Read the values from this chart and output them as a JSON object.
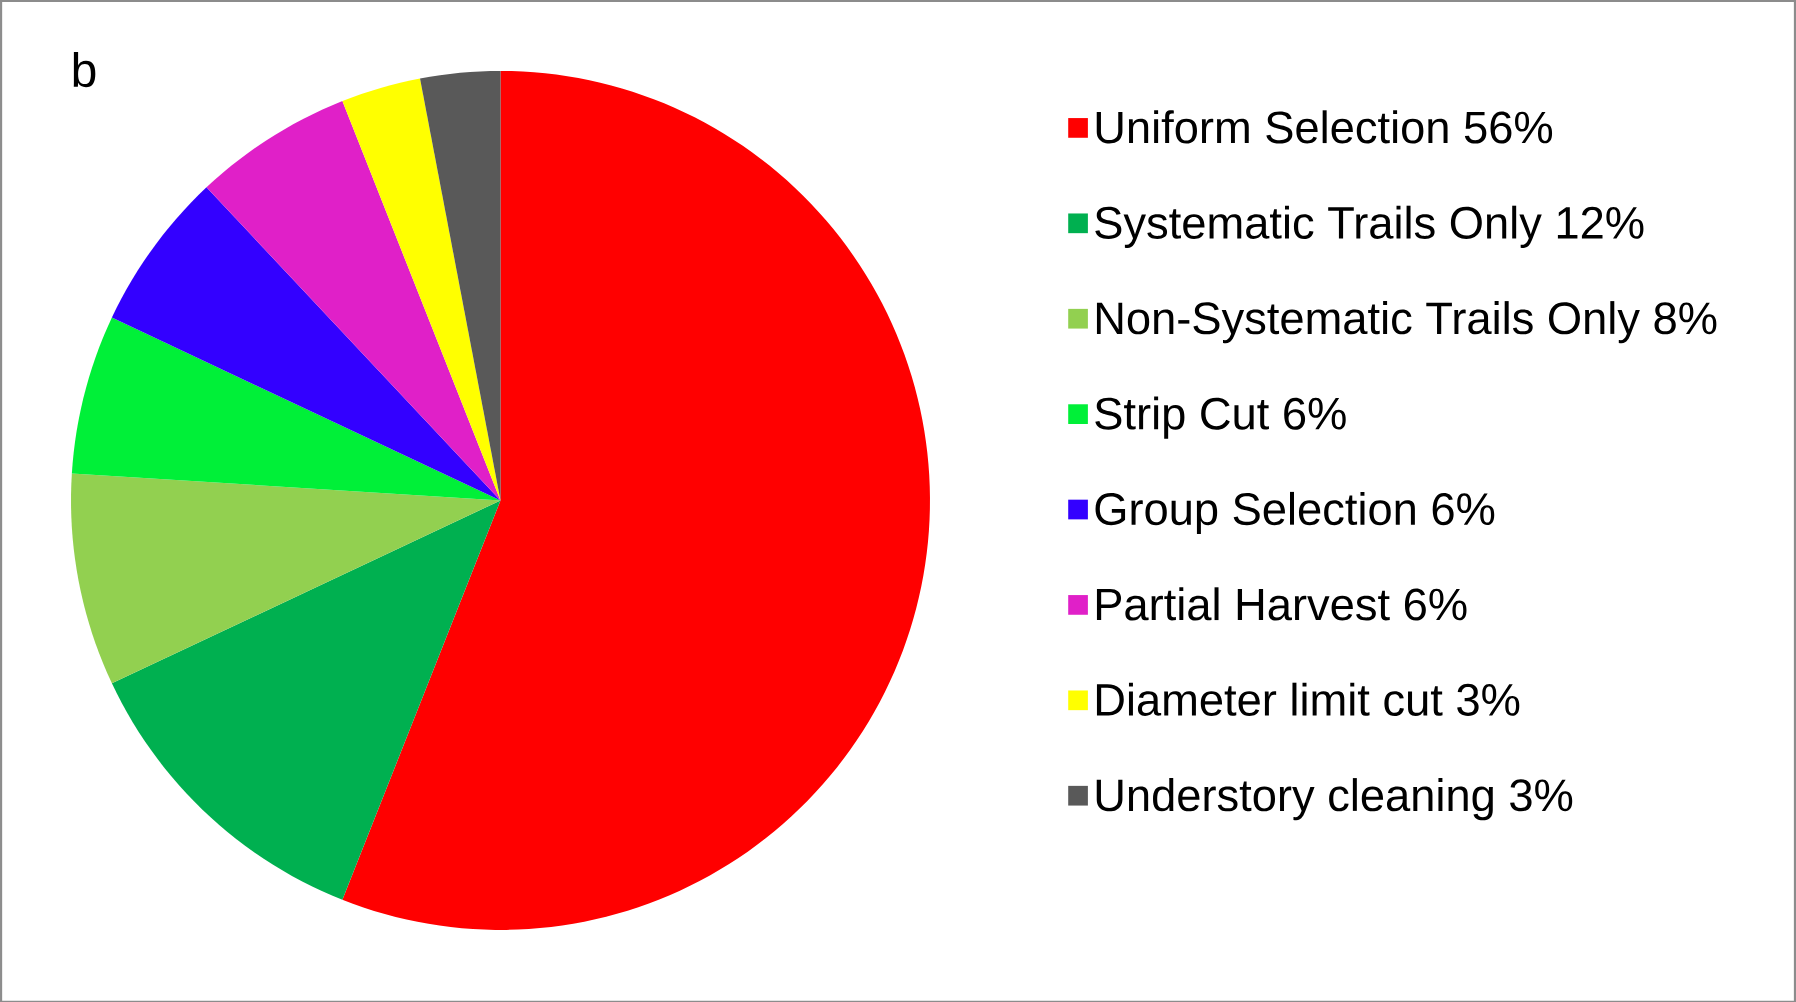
{
  "chart_data": {
    "type": "pie",
    "title": "b",
    "categories": [
      "Uniform Selection 56%",
      "Systematic Trails Only 12%",
      "Non-Systematic Trails Only 8%",
      "Strip Cut 6%",
      "Group Selection 6%",
      "Partial Harvest 6%",
      "Diameter limit cut 3%",
      "Understory cleaning 3%"
    ],
    "values": [
      56,
      12,
      8,
      6,
      6,
      6,
      3,
      3
    ],
    "colors": [
      "#ff0000",
      "#00b050",
      "#92d050",
      "#00f038",
      "#3300ff",
      "#e020c8",
      "#ffff00",
      "#595959"
    ],
    "legend": "right"
  }
}
